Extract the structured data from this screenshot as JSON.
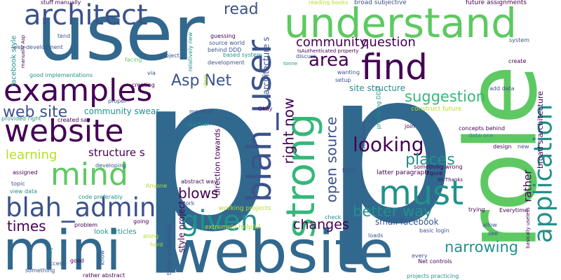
{
  "palette": {
    "deep_purple": "#440154",
    "indigo": "#3b528b",
    "blue": "#31688e",
    "teal": "#21918c",
    "green_teal": "#35b779",
    "green": "#5ec962",
    "yellow_green": "#b5de2b",
    "yellow": "#fde725"
  },
  "words": {
    "p_left": "p",
    "p_right": "p",
    "user": "user",
    "role": "role",
    "website_bottom": "website",
    "mini": "mini",
    "understand": "understand",
    "architect": "architect",
    "strong": "strong",
    "blah_user": "blah_user",
    "application": "application",
    "must": "must",
    "find": "find",
    "examples": "examples",
    "website_left": "website",
    "mind": "mind",
    "blah_admin": "blah_admin",
    "given": "given",
    "narrowing": "narrowing",
    "read": "read",
    "suggestion": "suggestion",
    "looking": "looking",
    "places": "places",
    "web_site": "web site",
    "asp_net": "Asp Net",
    "area": "area",
    "right_now": "right now",
    "open_source": "open source",
    "question": "question",
    "community_top": "community",
    "better_way": "better way",
    "changes": "changes",
    "blows": "blows",
    "times": "times",
    "learning": "learning",
    "structure_s": "structure s",
    "community_swear": "community swear",
    "small_facebook": "small facebook",
    "site_structure": "site structure",
    "architecture_s": "architecture s",
    "broad_s_architecture": "broad s architecture",
    "rather": "rather",
    "facebook_style": "facebook style",
    "stuff_manually": "stuff manually",
    "tend": "tend",
    "facing": "facing",
    "guessing": "guessing",
    "reading_books": "reading books",
    "broad_subjective": "broad subjective",
    "future_assignments": "future assignments",
    "web_development": "web development",
    "good_implementations": "good implementations",
    "manually_asp": "manually Asp",
    "via": "via",
    "proper": "proper",
    "creating": "creating",
    "provided_right": "provided right",
    "created_say": "created say",
    "source_world": "source world",
    "behind_ddd": "behind DDD",
    "based_system": "based system",
    "development": "development",
    "relatively_new": "relatively new",
    "project": "project",
    "isauthenticated_property": "IsAuthenticated property",
    "discuss": "discuss",
    "wanting": "wanting",
    "setup": "setup",
    "tonne": "tonne",
    "add_data": "add data",
    "create": "create",
    "system": "system",
    "construct_future": "construct future",
    "concepts_behind": "concepts behind",
    "data_one": "data one",
    "design": "design",
    "new": "new",
    "join": "join",
    "member": "member",
    "say_blah": "say blah",
    "okay": "Okay",
    "practicing_ddd": "practicing DDD",
    "developed": "developed",
    "ddd": "DDD",
    "direction_towards": "direction towards",
    "latter_paragraph": "latter paragraph",
    "something_wrong": "something wrong",
    "figure": "figure",
    "iis_thanks": "IIS Thanks",
    "assigned": "assigned",
    "topic": "topic",
    "view_data": "view data",
    "code_preferably": "code preferably",
    "developing": "developing",
    "anyone": "Anyone",
    "abstract_way": "abstract way",
    "work": "work",
    "working_projects": "working projects",
    "style_project": "style project",
    "times_extremely": "times extremely",
    "extremely_helpful": "extremely helpful",
    "look_articles": "look articles",
    "problem": "problem",
    "going": "going",
    "along": "along",
    "hard": "hard",
    "good": "good",
    "know": "know",
    "rather_abstract": "rather abstract",
    "way": "way",
    "something": "something",
    "access": "access",
    "check": "check",
    "loads": "loads",
    "every": "every",
    "net_controls": "Net controls",
    "projects_practicing": "projects practicing",
    "basic_login": "basic login",
    "trying": "trying",
    "allow": "allow",
    "see": "see",
    "everytime": "Everytime",
    "basically_useless": "basically useless",
    "sure": "sure",
    "ideas": "ideas"
  }
}
